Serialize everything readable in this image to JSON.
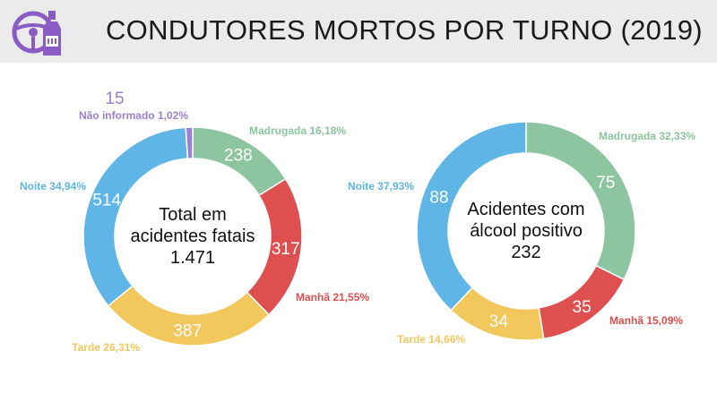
{
  "header": {
    "title": "CONDUTORES MORTOS POR TURNO (2019)",
    "logo_icon": "steering-wheel-bottle-icon"
  },
  "colors": {
    "madrugada": "#8dc5a0",
    "manha": "#de4f4f",
    "tarde": "#f2c75c",
    "noite": "#5eb5e6",
    "nao_informado": "#9b7fd0",
    "logo": "#8a5bc2"
  },
  "chart_data": [
    {
      "type": "pie",
      "variant": "donut",
      "center_lines": [
        "Total em",
        "acidentes fatais",
        "1.471"
      ],
      "slices": [
        {
          "name": "Madrugada",
          "value": 238,
          "percent_label": "Madrugada 16,18%",
          "color_key": "madrugada"
        },
        {
          "name": "Manhã",
          "value": 317,
          "percent_label": "Manhã 21,55%",
          "color_key": "manha"
        },
        {
          "name": "Tarde",
          "value": 387,
          "percent_label": "Tarde 26,31%",
          "color_key": "tarde"
        },
        {
          "name": "Noite",
          "value": 514,
          "percent_label": "Noite 34,94%",
          "color_key": "noite"
        },
        {
          "name": "Não informado",
          "value": 15,
          "percent_label": "Não informado 1,02%",
          "color_key": "nao_informado"
        }
      ]
    },
    {
      "type": "pie",
      "variant": "donut",
      "center_lines": [
        "Acidentes com",
        "álcool positivo",
        "232"
      ],
      "slices": [
        {
          "name": "Madrugada",
          "value": 75,
          "percent_label": "Madrugada 32,33%",
          "color_key": "madrugada"
        },
        {
          "name": "Manhã",
          "value": 35,
          "percent_label": "Manhã 15,09%",
          "color_key": "manha"
        },
        {
          "name": "Tarde",
          "value": 34,
          "percent_label": "Tarde 14,66%",
          "color_key": "tarde"
        },
        {
          "name": "Noite",
          "value": 88,
          "percent_label": "Noite 37,93%",
          "color_key": "noite"
        }
      ]
    }
  ]
}
